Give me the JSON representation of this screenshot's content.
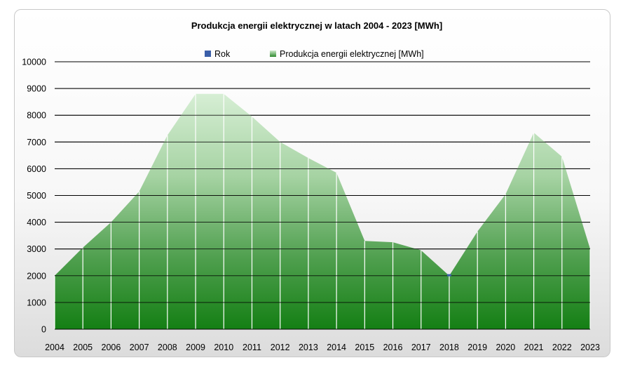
{
  "chart_data": {
    "type": "area",
    "title": "Produkcja energii elektrycznej w latach 2004 - 2023 [MWh]",
    "xlabel": "",
    "ylabel": "",
    "categories": [
      "2004",
      "2005",
      "2006",
      "2007",
      "2008",
      "2009",
      "2010",
      "2011",
      "2012",
      "2013",
      "2014",
      "2015",
      "2016",
      "2017",
      "2018",
      "2019",
      "2020",
      "2021",
      "2022",
      "2023"
    ],
    "series": [
      {
        "name": "Rok",
        "values": [
          2004,
          2005,
          2006,
          2007,
          2008,
          2009,
          2010,
          2011,
          2012,
          2013,
          2014,
          2015,
          2016,
          2017,
          2018,
          2019,
          2020,
          2021,
          2022,
          2023
        ],
        "color": "#3a5ea8"
      },
      {
        "name": "Produkcja energii elektrycznej [MWh]",
        "values": [
          2000,
          3050,
          4000,
          5150,
          7250,
          8800,
          8800,
          7950,
          7000,
          6400,
          5850,
          3300,
          3250,
          2950,
          2000,
          3650,
          5050,
          7350,
          6450,
          3000
        ],
        "color": "#2e9a2e"
      }
    ],
    "ylim": [
      0,
      10000
    ],
    "yticks": [
      "0",
      "1000",
      "2000",
      "3000",
      "4000",
      "5000",
      "6000",
      "7000",
      "8000",
      "9000",
      "10000"
    ],
    "grid": true,
    "legend": "top"
  }
}
